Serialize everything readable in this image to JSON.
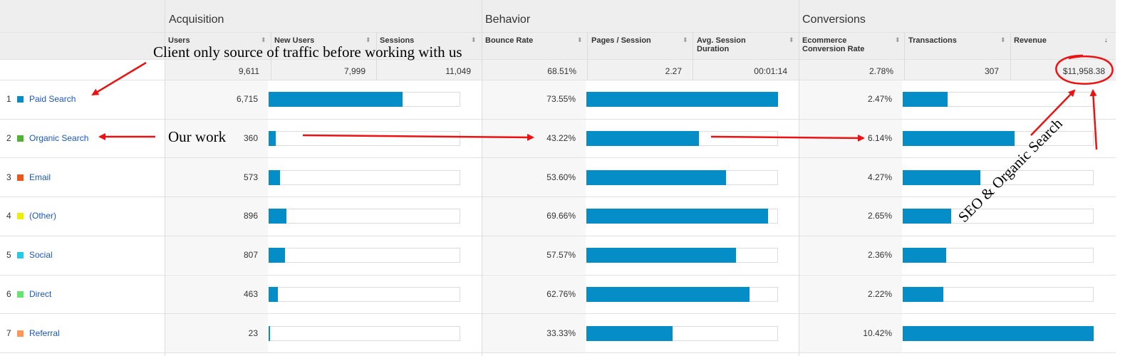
{
  "groups": [
    "Acquisition",
    "Behavior",
    "Conversions"
  ],
  "columns": [
    {
      "label": "Users",
      "sort": "⬍"
    },
    {
      "label": "New Users",
      "sort": "⬍"
    },
    {
      "label": "Sessions",
      "sort": "⬍"
    },
    {
      "label": "Bounce Rate",
      "sort": "⬍"
    },
    {
      "label": "Pages / Session",
      "sort": "⬍"
    },
    {
      "label": "Avg. Session Duration",
      "sort": "⬍"
    },
    {
      "label": "Ecommerce Conversion Rate",
      "sort": "⬍"
    },
    {
      "label": "Transactions",
      "sort": "⬍"
    },
    {
      "label": "Revenue",
      "sort": "↓"
    }
  ],
  "totals": [
    "9,611",
    "7,999",
    "11,049",
    "68.51%",
    "2.27",
    "00:01:14",
    "2.78%",
    "307",
    "$11,958.38"
  ],
  "rows": [
    {
      "num": "1",
      "channel": "Paid Search",
      "color": "#058dc7",
      "users": "6,715",
      "users_frac": 0.699,
      "bounce": "73.55%",
      "pages_frac": 1.0,
      "conv": "2.47%",
      "trans_frac": 0.235
    },
    {
      "num": "2",
      "channel": "Organic Search",
      "color": "#50b432",
      "users": "360",
      "users_frac": 0.037,
      "bounce": "43.22%",
      "pages_frac": 0.587,
      "conv": "6.14%",
      "trans_frac": 0.584
    },
    {
      "num": "3",
      "channel": "Email",
      "color": "#ed561b",
      "users": "573",
      "users_frac": 0.06,
      "bounce": "53.60%",
      "pages_frac": 0.728,
      "conv": "4.27%",
      "trans_frac": 0.406
    },
    {
      "num": "4",
      "channel": "(Other)",
      "color": "#edef00",
      "users": "896",
      "users_frac": 0.094,
      "bounce": "69.66%",
      "pages_frac": 0.947,
      "conv": "2.65%",
      "trans_frac": 0.254
    },
    {
      "num": "5",
      "channel": "Social",
      "color": "#24cbe5",
      "users": "807",
      "users_frac": 0.085,
      "bounce": "57.57%",
      "pages_frac": 0.782,
      "conv": "2.36%",
      "trans_frac": 0.226
    },
    {
      "num": "6",
      "channel": "Direct",
      "color": "#64e572",
      "users": "463",
      "users_frac": 0.048,
      "bounce": "62.76%",
      "pages_frac": 0.853,
      "conv": "2.22%",
      "trans_frac": 0.212
    },
    {
      "num": "7",
      "channel": "Referral",
      "color": "#ff9655",
      "users": "23",
      "users_frac": 0.006,
      "bounce": "33.33%",
      "pages_frac": 0.451,
      "conv": "10.42%",
      "trans_frac": 1.0
    }
  ],
  "bar_color": "#058dc7",
  "annotations": {
    "client_note": "Client only source of traffic before working with us",
    "our_work": "Our work",
    "seo_note": "SEO & Organic Search",
    "arrow_color": "#ee1111"
  }
}
